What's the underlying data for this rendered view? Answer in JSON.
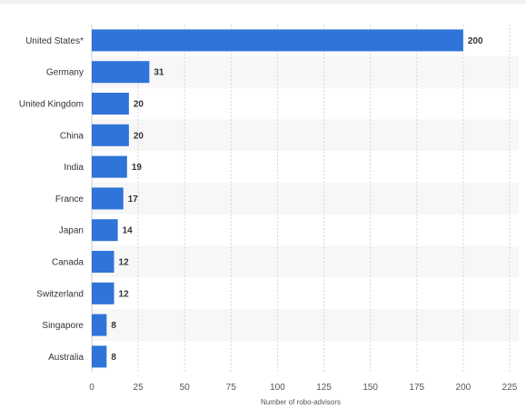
{
  "chart_data": {
    "type": "bar",
    "orientation": "horizontal",
    "categories": [
      "United States*",
      "Germany",
      "United Kingdom",
      "China",
      "India",
      "France",
      "Japan",
      "Canada",
      "Switzerland",
      "Singapore",
      "Australia"
    ],
    "values": [
      200,
      31,
      20,
      20,
      19,
      17,
      14,
      12,
      12,
      8,
      8
    ],
    "xlabel": "Number of robo-advisors",
    "ylabel": "",
    "xlim": [
      0,
      225
    ],
    "xticks": [
      0,
      25,
      50,
      75,
      100,
      125,
      150,
      175,
      200,
      225
    ],
    "grid": "vertical dashed",
    "legend": "none",
    "bar_color": "#2f74d9",
    "alt_row_color": "#f7f7f7"
  }
}
